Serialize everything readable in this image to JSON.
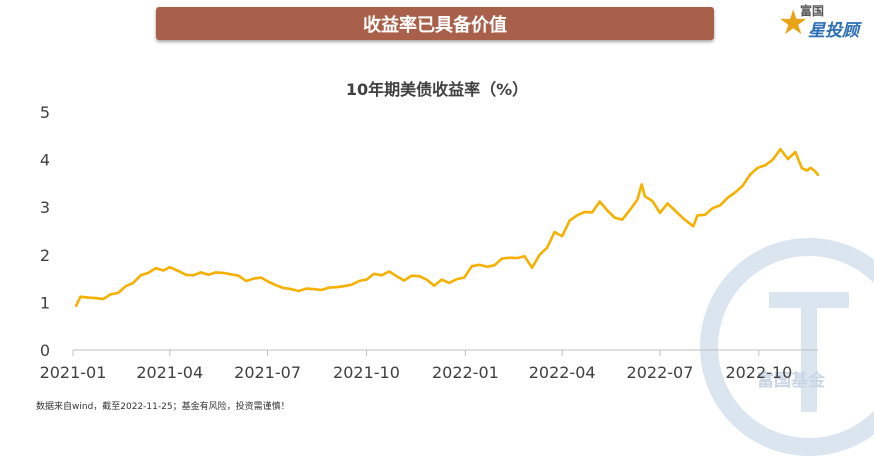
{
  "banner": {
    "title": "收益率已具备价值"
  },
  "logo": {
    "top_text": "富国",
    "main_text": "星投顾"
  },
  "watermark": {
    "text": "富国基金"
  },
  "footer": {
    "source": "数据来自wind，截至2022-11-25；基金有风险，投资需谨慎！"
  },
  "colors": {
    "line": "#f5b000",
    "banner": "#a9604a",
    "axis": "#bfbfbf"
  },
  "chart_data": {
    "type": "line",
    "title": "10年期美债收益率（%）",
    "xlabel": "",
    "ylabel": "",
    "ylim": [
      0,
      5
    ],
    "yticks": [
      "0",
      "1",
      "2",
      "3",
      "4",
      "5"
    ],
    "xlim": [
      "2021-01-01",
      "2022-11-25"
    ],
    "xticks": [
      {
        "date": "2021-01-01",
        "label": "2021-01"
      },
      {
        "date": "2021-04-01",
        "label": "2021-04"
      },
      {
        "date": "2021-07-01",
        "label": "2021-07"
      },
      {
        "date": "2021-10-01",
        "label": "2021-10"
      },
      {
        "date": "2022-01-01",
        "label": "2022-01"
      },
      {
        "date": "2022-04-01",
        "label": "2022-04"
      },
      {
        "date": "2022-07-01",
        "label": "2022-07"
      },
      {
        "date": "2022-10-01",
        "label": "2022-10"
      }
    ],
    "grid": false,
    "legend": "none",
    "series": [
      {
        "points": [
          [
            "2021-01-04",
            0.93
          ],
          [
            "2021-01-08",
            1.12
          ],
          [
            "2021-01-15",
            1.1
          ],
          [
            "2021-01-22",
            1.09
          ],
          [
            "2021-01-29",
            1.07
          ],
          [
            "2021-02-05",
            1.17
          ],
          [
            "2021-02-12",
            1.2
          ],
          [
            "2021-02-19",
            1.34
          ],
          [
            "2021-02-26",
            1.41
          ],
          [
            "2021-03-05",
            1.57
          ],
          [
            "2021-03-12",
            1.62
          ],
          [
            "2021-03-19",
            1.72
          ],
          [
            "2021-03-26",
            1.67
          ],
          [
            "2021-04-01",
            1.74
          ],
          [
            "2021-04-09",
            1.66
          ],
          [
            "2021-04-16",
            1.58
          ],
          [
            "2021-04-23",
            1.57
          ],
          [
            "2021-04-30",
            1.63
          ],
          [
            "2021-05-07",
            1.58
          ],
          [
            "2021-05-14",
            1.63
          ],
          [
            "2021-05-21",
            1.62
          ],
          [
            "2021-05-28",
            1.59
          ],
          [
            "2021-06-04",
            1.56
          ],
          [
            "2021-06-11",
            1.45
          ],
          [
            "2021-06-18",
            1.5
          ],
          [
            "2021-06-25",
            1.52
          ],
          [
            "2021-07-02",
            1.43
          ],
          [
            "2021-07-09",
            1.36
          ],
          [
            "2021-07-16",
            1.3
          ],
          [
            "2021-07-23",
            1.28
          ],
          [
            "2021-07-30",
            1.24
          ],
          [
            "2021-08-06",
            1.29
          ],
          [
            "2021-08-13",
            1.28
          ],
          [
            "2021-08-20",
            1.26
          ],
          [
            "2021-08-27",
            1.31
          ],
          [
            "2021-09-03",
            1.32
          ],
          [
            "2021-09-10",
            1.34
          ],
          [
            "2021-09-17",
            1.37
          ],
          [
            "2021-09-24",
            1.45
          ],
          [
            "2021-10-01",
            1.48
          ],
          [
            "2021-10-08",
            1.6
          ],
          [
            "2021-10-15",
            1.57
          ],
          [
            "2021-10-22",
            1.65
          ],
          [
            "2021-10-29",
            1.55
          ],
          [
            "2021-11-05",
            1.46
          ],
          [
            "2021-11-12",
            1.56
          ],
          [
            "2021-11-19",
            1.55
          ],
          [
            "2021-11-26",
            1.48
          ],
          [
            "2021-12-03",
            1.35
          ],
          [
            "2021-12-10",
            1.48
          ],
          [
            "2021-12-17",
            1.41
          ],
          [
            "2021-12-24",
            1.49
          ],
          [
            "2021-12-31",
            1.52
          ],
          [
            "2022-01-07",
            1.76
          ],
          [
            "2022-01-14",
            1.79
          ],
          [
            "2022-01-21",
            1.75
          ],
          [
            "2022-01-28",
            1.78
          ],
          [
            "2022-02-04",
            1.92
          ],
          [
            "2022-02-11",
            1.94
          ],
          [
            "2022-02-18",
            1.93
          ],
          [
            "2022-02-25",
            1.97
          ],
          [
            "2022-03-04",
            1.73
          ],
          [
            "2022-03-11",
            2.0
          ],
          [
            "2022-03-18",
            2.15
          ],
          [
            "2022-03-25",
            2.48
          ],
          [
            "2022-04-01",
            2.39
          ],
          [
            "2022-04-08",
            2.72
          ],
          [
            "2022-04-15",
            2.83
          ],
          [
            "2022-04-22",
            2.9
          ],
          [
            "2022-04-29",
            2.89
          ],
          [
            "2022-05-06",
            3.12
          ],
          [
            "2022-05-13",
            2.93
          ],
          [
            "2022-05-20",
            2.78
          ],
          [
            "2022-05-27",
            2.74
          ],
          [
            "2022-06-03",
            2.94
          ],
          [
            "2022-06-10",
            3.16
          ],
          [
            "2022-06-14",
            3.48
          ],
          [
            "2022-06-17",
            3.23
          ],
          [
            "2022-06-24",
            3.13
          ],
          [
            "2022-07-01",
            2.88
          ],
          [
            "2022-07-08",
            3.08
          ],
          [
            "2022-07-15",
            2.93
          ],
          [
            "2022-07-22",
            2.78
          ],
          [
            "2022-07-29",
            2.65
          ],
          [
            "2022-08-01",
            2.6
          ],
          [
            "2022-08-05",
            2.83
          ],
          [
            "2022-08-12",
            2.84
          ],
          [
            "2022-08-19",
            2.98
          ],
          [
            "2022-08-26",
            3.04
          ],
          [
            "2022-09-02",
            3.2
          ],
          [
            "2022-09-09",
            3.31
          ],
          [
            "2022-09-16",
            3.45
          ],
          [
            "2022-09-23",
            3.69
          ],
          [
            "2022-09-30",
            3.83
          ],
          [
            "2022-10-07",
            3.88
          ],
          [
            "2022-10-14",
            4.0
          ],
          [
            "2022-10-21",
            4.22
          ],
          [
            "2022-10-28",
            4.01
          ],
          [
            "2022-11-04",
            4.16
          ],
          [
            "2022-11-10",
            3.82
          ],
          [
            "2022-11-15",
            3.77
          ],
          [
            "2022-11-18",
            3.83
          ],
          [
            "2022-11-22",
            3.76
          ],
          [
            "2022-11-25",
            3.68
          ]
        ]
      }
    ]
  }
}
